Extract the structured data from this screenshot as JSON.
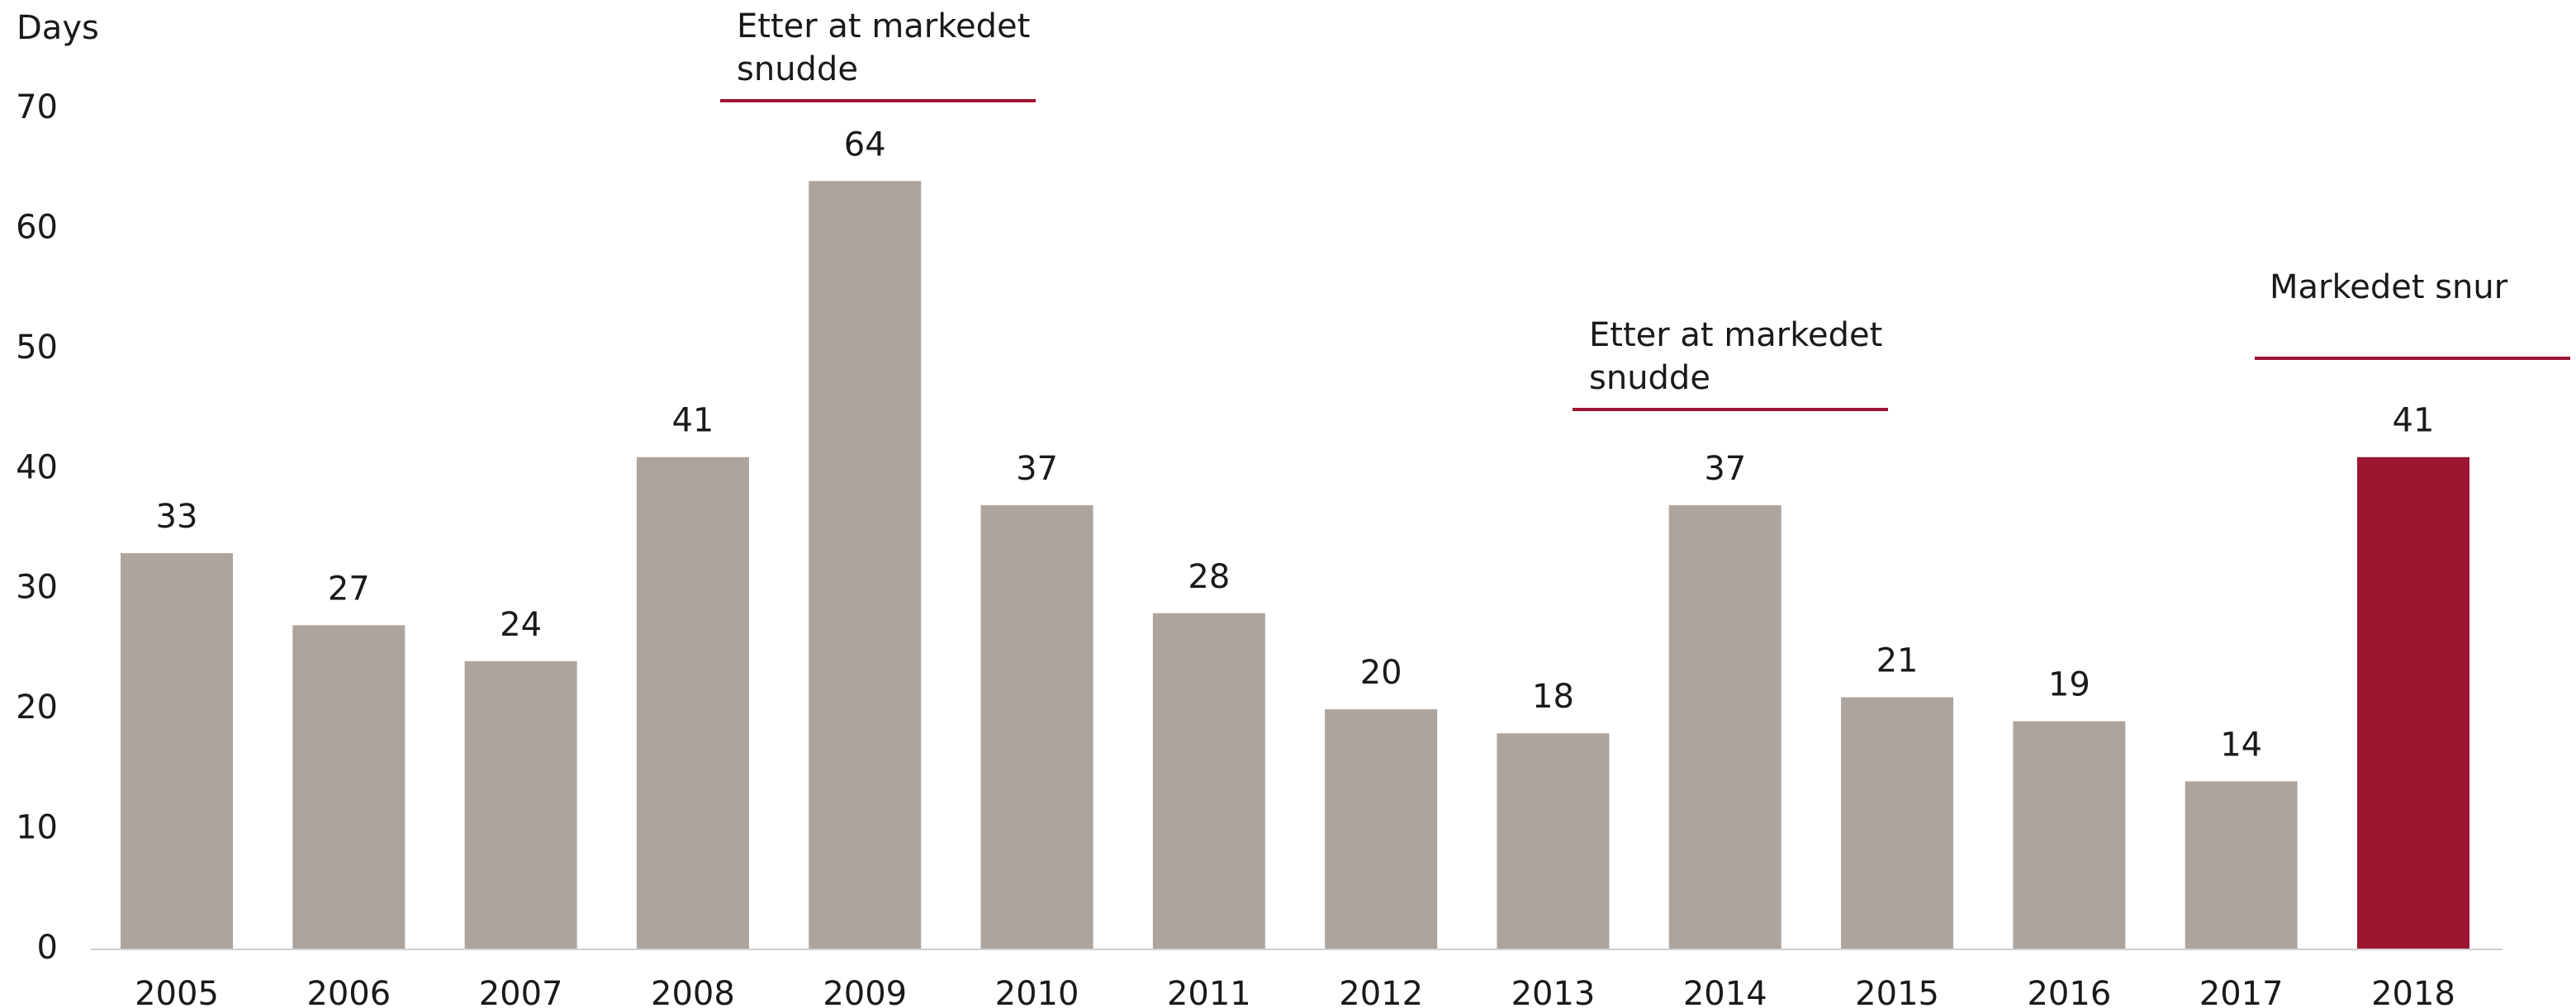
{
  "chart_data": {
    "type": "bar",
    "y_label": "Days",
    "categories": [
      "2005",
      "2006",
      "2007",
      "2008",
      "2009",
      "2010",
      "2011",
      "2012",
      "2013",
      "2014",
      "2015",
      "2016",
      "2017",
      "2018"
    ],
    "values": [
      33,
      27,
      24,
      41,
      64,
      37,
      28,
      20,
      18,
      37,
      21,
      19,
      14,
      41
    ],
    "colors": [
      "#ada49e",
      "#ada49e",
      "#ada49e",
      "#ada49e",
      "#ada49e",
      "#ada49e",
      "#ada49e",
      "#ada49e",
      "#ada49e",
      "#ada49e",
      "#ada49e",
      "#ada49e",
      "#ada49e",
      "#9b1631"
    ],
    "ylim": [
      0,
      70
    ],
    "yticks": [
      0,
      10,
      20,
      30,
      40,
      50,
      60,
      70
    ],
    "grid": false,
    "annotations": [
      {
        "lines": [
          "Etter at markedet",
          "snudde"
        ],
        "color": "#9b1631"
      },
      {
        "lines": [
          "Etter at markedet",
          "snudde"
        ],
        "color": "#9b1631"
      },
      {
        "lines": [
          "Markedet snur"
        ],
        "color": "#9b1631"
      }
    ]
  }
}
